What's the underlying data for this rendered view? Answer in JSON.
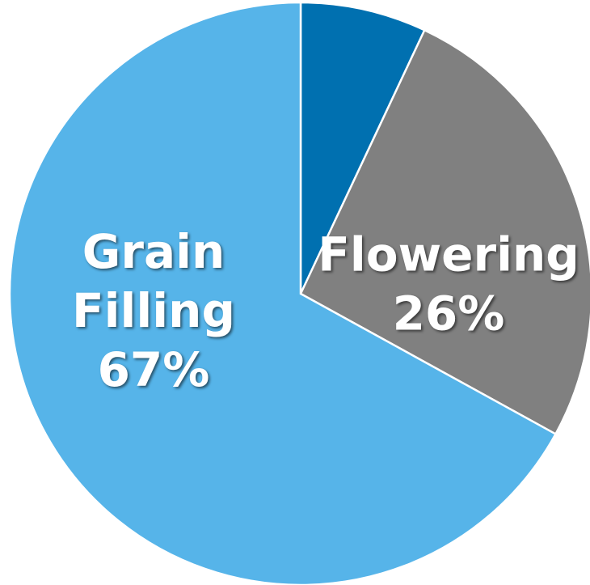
{
  "chart_data": {
    "type": "pie",
    "categories": [
      null,
      "Flowering",
      "Grain Filling"
    ],
    "values": [
      7,
      26,
      67
    ],
    "value_labels": [
      null,
      "26%",
      "67%"
    ],
    "colors": [
      "#0070b0",
      "#808080",
      "#56b4e9"
    ],
    "start_angle": 90,
    "direction": "clockwise"
  }
}
